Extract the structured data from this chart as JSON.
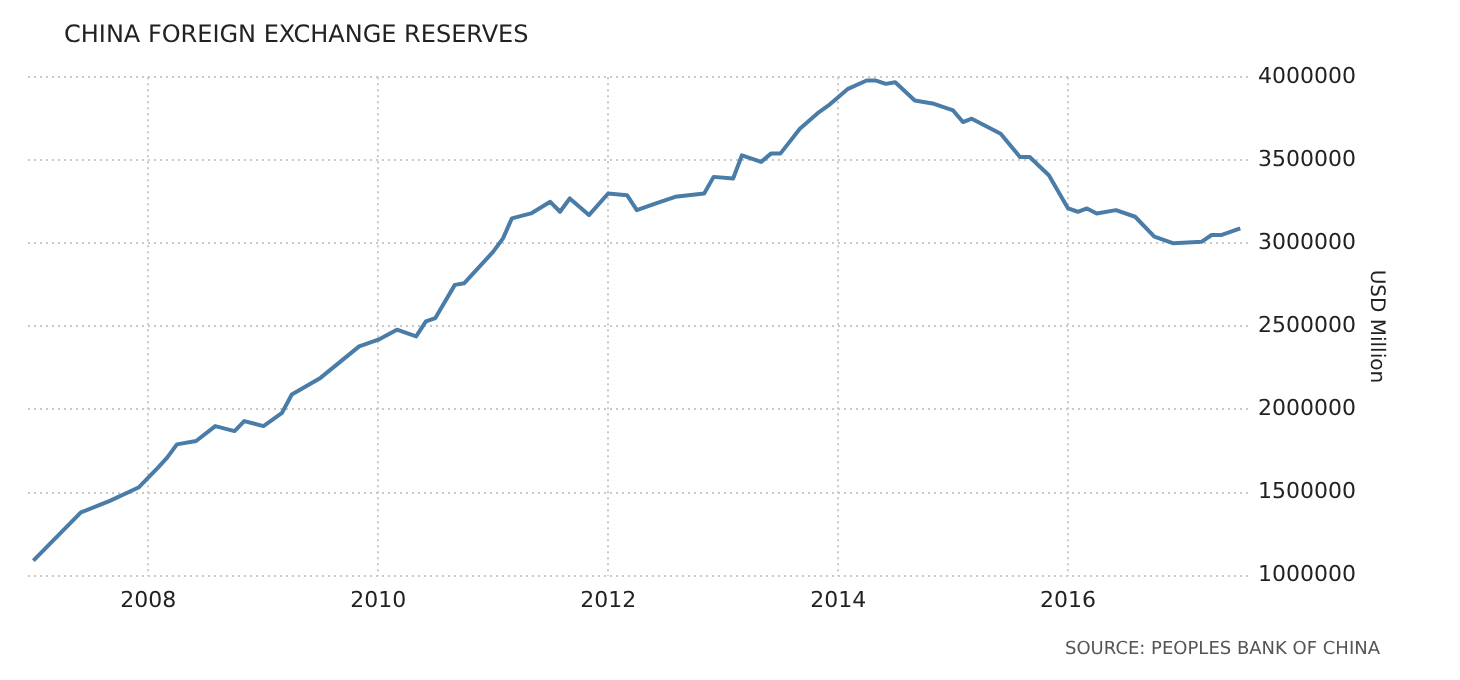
{
  "chart_data": {
    "type": "line",
    "title": "CHINA FOREIGN EXCHANGE RESERVES",
    "ylabel": "USD Million",
    "annotations": [
      "SOURCE: PEOPLES BANK OF CHINA"
    ],
    "x": [
      "2007-01",
      "2007-06",
      "2007-09",
      "2007-12",
      "2008-02",
      "2008-03",
      "2008-04",
      "2008-06",
      "2008-08",
      "2008-10",
      "2008-11",
      "2009-01",
      "2009-03",
      "2009-04",
      "2009-07",
      "2009-11",
      "2010-01",
      "2010-03",
      "2010-05",
      "2010-06",
      "2010-07",
      "2010-09",
      "2010-10",
      "2011-01",
      "2011-02",
      "2011-03",
      "2011-05",
      "2011-07",
      "2011-08",
      "2011-09",
      "2011-11",
      "2012-01",
      "2012-03",
      "2012-04",
      "2012-06",
      "2012-08",
      "2012-11",
      "2012-12",
      "2013-02",
      "2013-03",
      "2013-05",
      "2013-06",
      "2013-07",
      "2013-09",
      "2013-11",
      "2013-12",
      "2014-02",
      "2014-04",
      "2014-05",
      "2014-06",
      "2014-07",
      "2014-09",
      "2014-11",
      "2015-01",
      "2015-02",
      "2015-03",
      "2015-06",
      "2015-08",
      "2015-09",
      "2015-11",
      "2016-01",
      "2016-02",
      "2016-03",
      "2016-04",
      "2016-06",
      "2016-08",
      "2016-10",
      "2016-12",
      "2017-03",
      "2017-04",
      "2017-05",
      "2017-07"
    ],
    "values": [
      1090000,
      1380000,
      1450000,
      1530000,
      1650000,
      1710000,
      1790000,
      1810000,
      1900000,
      1870000,
      1930000,
      1900000,
      1980000,
      2090000,
      2190000,
      2380000,
      2420000,
      2480000,
      2440000,
      2530000,
      2550000,
      2750000,
      2760000,
      2950000,
      3030000,
      3150000,
      3180000,
      3250000,
      3190000,
      3270000,
      3170000,
      3300000,
      3290000,
      3200000,
      3240000,
      3280000,
      3300000,
      3400000,
      3390000,
      3530000,
      3490000,
      3540000,
      3540000,
      3690000,
      3790000,
      3830000,
      3930000,
      3980000,
      3980000,
      3960000,
      3970000,
      3860000,
      3840000,
      3800000,
      3730000,
      3750000,
      3660000,
      3520000,
      3520000,
      3410000,
      3210000,
      3190000,
      3210000,
      3180000,
      3200000,
      3160000,
      3040000,
      3000000,
      3010000,
      3050000,
      3050000,
      3090000
    ],
    "color": "#4a7ca8",
    "xlim": [
      "2006-12-15",
      "2017-08"
    ],
    "xticks": [
      "2008",
      "2010",
      "2012",
      "2014",
      "2016"
    ],
    "ylim": [
      1000000,
      4000000
    ],
    "yticks": [
      1000000,
      1500000,
      2000000,
      2500000,
      3000000,
      3500000,
      4000000
    ],
    "grid": true
  }
}
